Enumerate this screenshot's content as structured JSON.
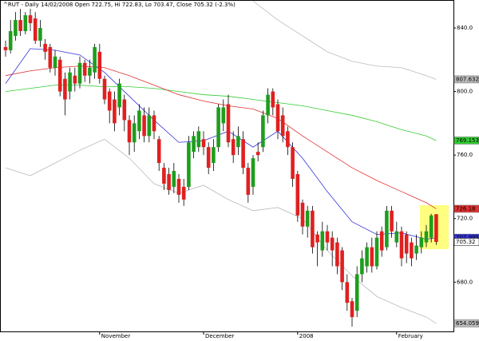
{
  "chart_data": {
    "type": "candlestick",
    "title": "^RUT - Daily 14/02/2008 Open 722.75, Hi 722.83, Lo 703.47, Close 705.32 (-2.3%)",
    "categories": [
      null,
      null,
      null,
      null,
      null,
      null,
      null,
      null,
      null,
      null,
      null,
      null,
      null,
      null,
      null,
      null,
      null,
      null,
      null,
      "November",
      null,
      null,
      null,
      null,
      null,
      null,
      null,
      null,
      null,
      null,
      null,
      null,
      null,
      null,
      null,
      null,
      null,
      null,
      null,
      null,
      "December",
      null,
      null,
      null,
      null,
      null,
      null,
      null,
      null,
      null,
      null,
      null,
      null,
      null,
      null,
      null,
      null,
      null,
      null,
      "2008",
      null,
      null,
      null,
      null,
      null,
      null,
      null,
      null,
      null,
      null,
      null,
      null,
      null,
      null,
      null,
      null,
      null,
      null,
      null,
      "February",
      null,
      null,
      null,
      null,
      null,
      null,
      null,
      null
    ],
    "open": [
      828,
      826,
      835,
      845,
      838,
      848,
      846,
      832,
      830,
      828,
      815,
      820,
      808,
      800,
      810,
      805,
      818,
      810,
      812,
      825,
      808,
      800,
      795,
      790,
      795,
      782,
      768,
      775,
      785,
      772,
      785,
      770,
      752,
      748,
      740,
      745,
      740,
      740,
      762,
      765,
      770,
      765,
      755,
      765,
      780,
      792,
      770,
      765,
      770,
      752,
      740,
      762,
      765,
      785,
      800,
      792,
      785,
      775,
      765,
      748,
      730,
      715,
      725,
      710,
      700,
      712,
      708,
      705,
      700,
      680,
      668,
      662,
      685,
      690,
      702,
      690,
      712,
      702,
      725,
      705,
      712,
      710,
      705,
      698,
      702,
      705,
      708,
      722.75
    ],
    "high": [
      832,
      845,
      850,
      852,
      850,
      852,
      850,
      845,
      833,
      830,
      826,
      822,
      812,
      815,
      815,
      822,
      820,
      820,
      830,
      830,
      810,
      802,
      800,
      808,
      798,
      785,
      785,
      792,
      790,
      790,
      788,
      772,
      755,
      752,
      755,
      748,
      745,
      772,
      775,
      778,
      775,
      768,
      770,
      792,
      795,
      798,
      775,
      778,
      775,
      755,
      760,
      768,
      788,
      802,
      802,
      795,
      790,
      778,
      768,
      750,
      732,
      728,
      728,
      712,
      718,
      716,
      712,
      708,
      702,
      685,
      670,
      690,
      700,
      705,
      708,
      712,
      715,
      728,
      728,
      718,
      715,
      712,
      708,
      710,
      712,
      716,
      723,
      722.83
    ],
    "low": [
      822,
      824,
      832,
      835,
      836,
      838,
      830,
      828,
      820,
      812,
      810,
      797,
      785,
      795,
      800,
      802,
      806,
      805,
      808,
      805,
      792,
      780,
      775,
      785,
      775,
      760,
      762,
      770,
      768,
      768,
      770,
      750,
      738,
      735,
      736,
      730,
      728,
      738,
      758,
      762,
      760,
      748,
      750,
      762,
      775,
      765,
      755,
      760,
      748,
      730,
      735,
      756,
      762,
      780,
      785,
      770,
      768,
      760,
      740,
      718,
      710,
      708,
      698,
      690,
      696,
      700,
      690,
      685,
      675,
      662,
      652,
      658,
      680,
      686,
      686,
      688,
      696,
      700,
      708,
      702,
      690,
      692,
      690,
      694,
      698,
      702,
      705,
      703.47
    ],
    "close": [
      826,
      838,
      845,
      838,
      848,
      843,
      832,
      840,
      825,
      815,
      822,
      800,
      795,
      812,
      805,
      818,
      810,
      815,
      828,
      808,
      795,
      788,
      780,
      805,
      782,
      768,
      780,
      788,
      772,
      785,
      775,
      755,
      742,
      738,
      750,
      735,
      732,
      768,
      772,
      775,
      765,
      752,
      765,
      790,
      790,
      768,
      760,
      772,
      752,
      735,
      758,
      760,
      785,
      798,
      790,
      775,
      772,
      765,
      745,
      722,
      715,
      725,
      702,
      705,
      712,
      705,
      700,
      690,
      680,
      667,
      658,
      685,
      695,
      702,
      690,
      708,
      700,
      725,
      712,
      712,
      695,
      698,
      695,
      703,
      708,
      712,
      722,
      705.32
    ],
    "up_color": "#1e9e1e",
    "down_color": "#e02020",
    "series": [
      {
        "color": "#bbbbbb",
        "x": [
          0,
          5,
          10,
          15,
          20,
          25,
          30,
          35,
          40,
          45,
          50,
          55,
          60,
          65,
          70,
          75,
          80,
          85,
          87
        ],
        "values": [
          null,
          null,
          null,
          null,
          null,
          null,
          null,
          null,
          null,
          null,
          857,
          845,
          835,
          825,
          819,
          816,
          815,
          810,
          807.632
        ]
      },
      {
        "color": "#33cc33",
        "x": [
          0,
          5,
          10,
          15,
          20,
          25,
          30,
          35,
          40,
          45,
          50,
          55,
          60,
          65,
          70,
          75,
          80,
          85,
          87
        ],
        "values": [
          800,
          802,
          804,
          804,
          803,
          803,
          802,
          800,
          798,
          797,
          795,
          793,
          791,
          788,
          785,
          781,
          776,
          772,
          769.153
        ]
      },
      {
        "color": "#e03030",
        "x": [
          0,
          5,
          10,
          15,
          20,
          25,
          30,
          35,
          40,
          45,
          50,
          55,
          60,
          65,
          70,
          75,
          80,
          85,
          87
        ],
        "values": [
          810,
          813,
          815,
          816,
          815,
          810,
          804,
          798,
          794,
          791,
          789,
          783,
          772,
          762,
          752,
          744,
          737,
          730,
          726.18
        ]
      },
      {
        "color": "#3333dd",
        "x": [
          0,
          5,
          10,
          15,
          20,
          25,
          30,
          35,
          40,
          45,
          50,
          55,
          60,
          65,
          70,
          75,
          80,
          85,
          87
        ],
        "values": [
          805,
          827,
          826,
          823,
          812,
          797,
          782,
          768,
          769,
          775,
          765,
          775,
          758,
          737,
          718,
          710,
          711,
          707,
          707.995
        ]
      },
      {
        "color": "#bbbbbb",
        "x": [
          0,
          5,
          10,
          15,
          20,
          25,
          30,
          35,
          40,
          45,
          50,
          55,
          60,
          65,
          70,
          75,
          80,
          85,
          87
        ],
        "values": [
          752,
          747,
          755,
          763,
          770,
          758,
          742,
          736,
          741,
          732,
          725,
          727,
          720,
          700,
          684,
          671,
          664,
          658,
          654.059
        ]
      }
    ],
    "ylim": [
      649,
      857.6
    ],
    "yticks": [
      {
        "value": 680,
        "label": "680.0"
      },
      {
        "value": 720,
        "label": "720.0"
      },
      {
        "value": 760,
        "label": "760.0"
      },
      {
        "value": 800,
        "label": "800.0"
      },
      {
        "value": 840,
        "label": "840.0"
      }
    ],
    "grid": false
  }
}
